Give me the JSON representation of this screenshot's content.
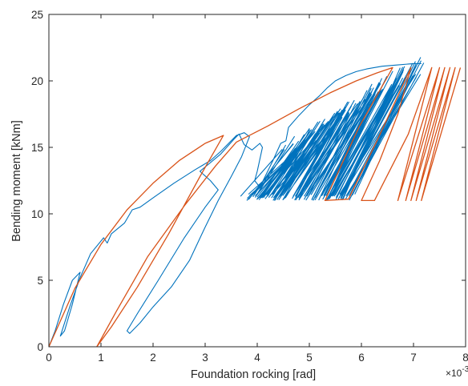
{
  "chart_data": {
    "type": "line",
    "title": "",
    "xlabel": "Foundation rocking [rad]",
    "ylabel": "Bending moment [kNm]",
    "x_multiplier_label": "×10",
    "x_multiplier_exponent": "-3",
    "xlim": [
      0,
      8.0
    ],
    "ylim": [
      0,
      25
    ],
    "x_ticks": [
      0,
      1,
      2,
      3,
      4,
      5,
      6,
      7,
      8
    ],
    "y_ticks": [
      0,
      5,
      10,
      15,
      20,
      25
    ],
    "x_tick_labels": [
      "0",
      "1",
      "2",
      "3",
      "4",
      "5",
      "6",
      "7",
      "8"
    ],
    "y_tick_labels": [
      "0",
      "5",
      "10",
      "15",
      "20",
      "25"
    ],
    "x_unit_scale": 0.001,
    "grid": false,
    "legend": "none",
    "series": [
      {
        "color": "#0072BD",
        "points": [
          [
            0,
            0
          ],
          [
            0.12,
            1.2
          ],
          [
            0.28,
            3.2
          ],
          [
            0.45,
            5.0
          ],
          [
            0.6,
            5.6
          ],
          [
            0.45,
            3.2
          ],
          [
            0.3,
            1.2
          ],
          [
            0.22,
            0.8
          ],
          [
            0.4,
            3.0
          ],
          [
            0.6,
            5.2
          ],
          [
            0.8,
            7.0
          ],
          [
            1.05,
            8.2
          ],
          [
            1.12,
            7.8
          ],
          [
            1.2,
            8.5
          ],
          [
            1.45,
            9.3
          ],
          [
            1.6,
            10.3
          ],
          [
            1.75,
            10.5
          ],
          [
            2.0,
            11.2
          ],
          [
            2.4,
            12.3
          ],
          [
            2.8,
            13.3
          ],
          [
            3.1,
            14.0
          ],
          [
            3.3,
            14.7
          ],
          [
            3.45,
            15.3
          ],
          [
            3.6,
            15.9
          ],
          [
            3.75,
            16.1
          ],
          [
            3.85,
            15.8
          ],
          [
            3.7,
            14.3
          ],
          [
            3.5,
            12.8
          ],
          [
            3.25,
            11.0
          ],
          [
            3.0,
            9.0
          ],
          [
            2.7,
            6.5
          ],
          [
            2.35,
            4.5
          ],
          [
            2.0,
            3.0
          ],
          [
            1.75,
            1.8
          ],
          [
            1.55,
            1.0
          ],
          [
            1.5,
            1.2
          ],
          [
            1.7,
            2.5
          ],
          [
            2.1,
            5.0
          ],
          [
            2.6,
            8.2
          ],
          [
            3.0,
            10.5
          ],
          [
            3.25,
            11.8
          ],
          [
            3.1,
            12.5
          ],
          [
            2.9,
            13.2
          ],
          [
            3.3,
            14.5
          ],
          [
            3.55,
            15.6
          ],
          [
            3.65,
            16.0
          ],
          [
            3.75,
            15.2
          ],
          [
            3.9,
            14.8
          ],
          [
            4.05,
            15.3
          ],
          [
            4.1,
            15.0
          ],
          [
            4.0,
            13.2
          ],
          [
            3.95,
            12.5
          ],
          [
            4.05,
            12.0
          ],
          [
            4.3,
            14.0
          ],
          [
            4.45,
            15.3
          ],
          [
            4.55,
            15.5
          ],
          [
            4.6,
            16.5
          ],
          [
            4.8,
            17.4
          ],
          [
            5.0,
            18.2
          ],
          [
            5.2,
            18.9
          ],
          [
            5.35,
            19.5
          ],
          [
            5.5,
            20.0
          ],
          [
            5.7,
            20.4
          ],
          [
            5.9,
            20.7
          ],
          [
            6.1,
            20.9
          ],
          [
            6.4,
            21.1
          ],
          [
            6.7,
            21.2
          ],
          [
            7.0,
            21.3
          ],
          [
            7.15,
            21.3
          ]
        ],
        "sweeps": {
          "x_start_min": 3.8,
          "x_start_max": 5.8,
          "x_end_min": 4.6,
          "x_end_max": 7.15,
          "y_low": 11.0,
          "y_high_min": 14.8,
          "y_high_max": 21.3,
          "count": 140
        }
      },
      {
        "color": "#D95319",
        "points": [
          [
            0,
            0
          ],
          [
            0.5,
            4.4
          ],
          [
            1.0,
            7.7
          ],
          [
            1.5,
            10.3
          ],
          [
            2.0,
            12.3
          ],
          [
            2.5,
            14.0
          ],
          [
            3.0,
            15.3
          ],
          [
            3.35,
            15.9
          ],
          [
            2.9,
            12.8
          ],
          [
            2.3,
            8.5
          ],
          [
            1.7,
            4.5
          ],
          [
            1.2,
            1.5
          ],
          [
            0.92,
            0
          ],
          [
            1.3,
            2.7
          ],
          [
            1.9,
            6.8
          ],
          [
            2.6,
            10.6
          ],
          [
            3.2,
            13.6
          ],
          [
            3.6,
            15.4
          ],
          [
            4.2,
            16.6
          ],
          [
            4.8,
            17.9
          ],
          [
            5.4,
            19.1
          ],
          [
            5.9,
            20.0
          ],
          [
            6.3,
            20.6
          ],
          [
            6.6,
            21.0
          ],
          [
            5.95,
            16.5
          ],
          [
            5.3,
            11.0
          ],
          [
            5.75,
            11.1
          ],
          [
            6.3,
            15.5
          ],
          [
            6.95,
            21.0
          ],
          [
            6.7,
            17.5
          ],
          [
            6.35,
            14.0
          ],
          [
            6.0,
            11.0
          ],
          [
            6.25,
            11.0
          ],
          [
            6.9,
            16.0
          ],
          [
            7.35,
            21.0
          ],
          [
            6.7,
            11.0
          ],
          [
            7.5,
            21.0
          ],
          [
            6.85,
            11.0
          ],
          [
            7.6,
            21.0
          ],
          [
            6.95,
            11.0
          ],
          [
            7.7,
            21.0
          ],
          [
            7.05,
            11.0
          ],
          [
            7.8,
            21.0
          ],
          [
            7.15,
            11.0
          ],
          [
            7.9,
            21.0
          ]
        ]
      }
    ]
  }
}
